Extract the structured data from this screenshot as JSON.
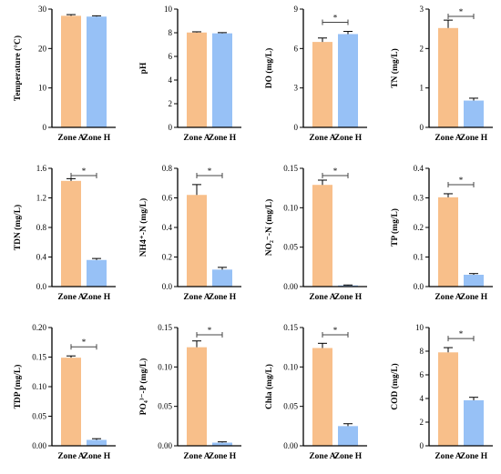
{
  "colors": {
    "zone_a": "#F8BF8A",
    "zone_h": "#97C1F6",
    "axis": "#000000",
    "bracket": "#444444"
  },
  "chart_data": [
    {
      "type": "bar",
      "ylabel": "Temperature (°C)",
      "ylim": [
        0,
        30
      ],
      "ticks": [
        0,
        10,
        20,
        30
      ],
      "tick_labels": [
        "0",
        "10",
        "20",
        "30"
      ],
      "categories": [
        "Zone A",
        "Zone H"
      ],
      "values": [
        28.3,
        28.1
      ],
      "errors": [
        0.3,
        0.2
      ],
      "significance": ""
    },
    {
      "type": "bar",
      "ylabel": "pH",
      "ylim": [
        0,
        10
      ],
      "ticks": [
        0,
        2,
        4,
        6,
        8,
        10
      ],
      "tick_labels": [
        "0",
        "2",
        "4",
        "6",
        "8",
        "10"
      ],
      "categories": [
        "Zone A",
        "Zone H"
      ],
      "values": [
        8.02,
        7.95
      ],
      "errors": [
        0.06,
        0.06
      ],
      "significance": ""
    },
    {
      "type": "bar",
      "ylabel": "DO (mg/L)",
      "ylim": [
        0,
        9
      ],
      "ticks": [
        0,
        3,
        6,
        9
      ],
      "tick_labels": [
        "0",
        "3",
        "6",
        "9"
      ],
      "categories": [
        "Zone A",
        "Zone H"
      ],
      "values": [
        6.5,
        7.1
      ],
      "errors": [
        0.3,
        0.2
      ],
      "significance": "*"
    },
    {
      "type": "bar",
      "ylabel": "TN (mg/L)",
      "ylim": [
        0,
        3
      ],
      "ticks": [
        0,
        1,
        2,
        3
      ],
      "tick_labels": [
        "0",
        "1",
        "2",
        "3"
      ],
      "categories": [
        "Zone A",
        "Zone H"
      ],
      "values": [
        2.52,
        0.68
      ],
      "errors": [
        0.2,
        0.06
      ],
      "significance": "*"
    },
    {
      "type": "bar",
      "ylabel": "TDN (mg/L)",
      "ylim": [
        0,
        1.6
      ],
      "ticks": [
        0,
        0.4,
        0.8,
        1.2,
        1.6
      ],
      "tick_labels": [
        "0.0",
        "0.4",
        "0.8",
        "1.2",
        "1.6"
      ],
      "categories": [
        "Zone A",
        "Zone H"
      ],
      "values": [
        1.43,
        0.36
      ],
      "errors": [
        0.03,
        0.02
      ],
      "significance": "*"
    },
    {
      "type": "bar",
      "ylabel": "NH4⁺-N (mg/L)",
      "ylim": [
        0,
        0.8
      ],
      "ticks": [
        0,
        0.2,
        0.4,
        0.6,
        0.8
      ],
      "tick_labels": [
        "0.0",
        "0.2",
        "0.4",
        "0.6",
        "0.8"
      ],
      "categories": [
        "Zone A",
        "Zone H"
      ],
      "values": [
        0.62,
        0.115
      ],
      "errors": [
        0.07,
        0.015
      ],
      "significance": "*"
    },
    {
      "type": "bar",
      "ylabel": "NO₂⁻-N (mg/L)",
      "ylim": [
        0,
        0.15
      ],
      "ticks": [
        0,
        0.05,
        0.1,
        0.15
      ],
      "tick_labels": [
        "0.00",
        "0.05",
        "0.10",
        "0.15"
      ],
      "categories": [
        "Zone A",
        "Zone H"
      ],
      "values": [
        0.129,
        0.0015
      ],
      "errors": [
        0.006,
        0.0005
      ],
      "significance": "*"
    },
    {
      "type": "bar",
      "ylabel": "TP (mg/L)",
      "ylim": [
        0,
        0.4
      ],
      "ticks": [
        0,
        0.1,
        0.2,
        0.3,
        0.4
      ],
      "tick_labels": [
        "0.0",
        "0.1",
        "0.2",
        "0.3",
        "0.4"
      ],
      "categories": [
        "Zone A",
        "Zone H"
      ],
      "values": [
        0.302,
        0.04
      ],
      "errors": [
        0.012,
        0.004
      ],
      "significance": "*"
    },
    {
      "type": "bar",
      "ylabel": "TDP (mg/L)",
      "ylim": [
        0,
        0.2
      ],
      "ticks": [
        0,
        0.05,
        0.1,
        0.15,
        0.2
      ],
      "tick_labels": [
        "0.00",
        "0.05",
        "0.10",
        "0.15",
        "0.20"
      ],
      "categories": [
        "Zone A",
        "Zone H"
      ],
      "values": [
        0.149,
        0.01
      ],
      "errors": [
        0.003,
        0.002
      ],
      "significance": "*"
    },
    {
      "type": "bar",
      "ylabel": "PO₄³⁻-P (mg/L)",
      "ylim": [
        0,
        0.15
      ],
      "ticks": [
        0,
        0.05,
        0.1,
        0.15
      ],
      "tick_labels": [
        "0.00",
        "0.05",
        "0.10",
        "0.15"
      ],
      "categories": [
        "Zone A",
        "Zone H"
      ],
      "values": [
        0.125,
        0.004
      ],
      "errors": [
        0.008,
        0.001
      ],
      "significance": "*"
    },
    {
      "type": "bar",
      "ylabel": "Chla (mg/L)",
      "ylim": [
        0,
        0.15
      ],
      "ticks": [
        0,
        0.05,
        0.1,
        0.15
      ],
      "tick_labels": [
        "0.00",
        "0.05",
        "0.10",
        "0.15"
      ],
      "categories": [
        "Zone A",
        "Zone H"
      ],
      "values": [
        0.124,
        0.025
      ],
      "errors": [
        0.006,
        0.003
      ],
      "significance": "*"
    },
    {
      "type": "bar",
      "ylabel": "COD (mg/L)",
      "ylim": [
        0,
        10
      ],
      "ticks": [
        0,
        2,
        4,
        6,
        8,
        10
      ],
      "tick_labels": [
        "0",
        "2",
        "4",
        "6",
        "8",
        "10"
      ],
      "categories": [
        "Zone A",
        "Zone H"
      ],
      "values": [
        7.9,
        3.85
      ],
      "errors": [
        0.4,
        0.25
      ],
      "significance": "*"
    }
  ]
}
